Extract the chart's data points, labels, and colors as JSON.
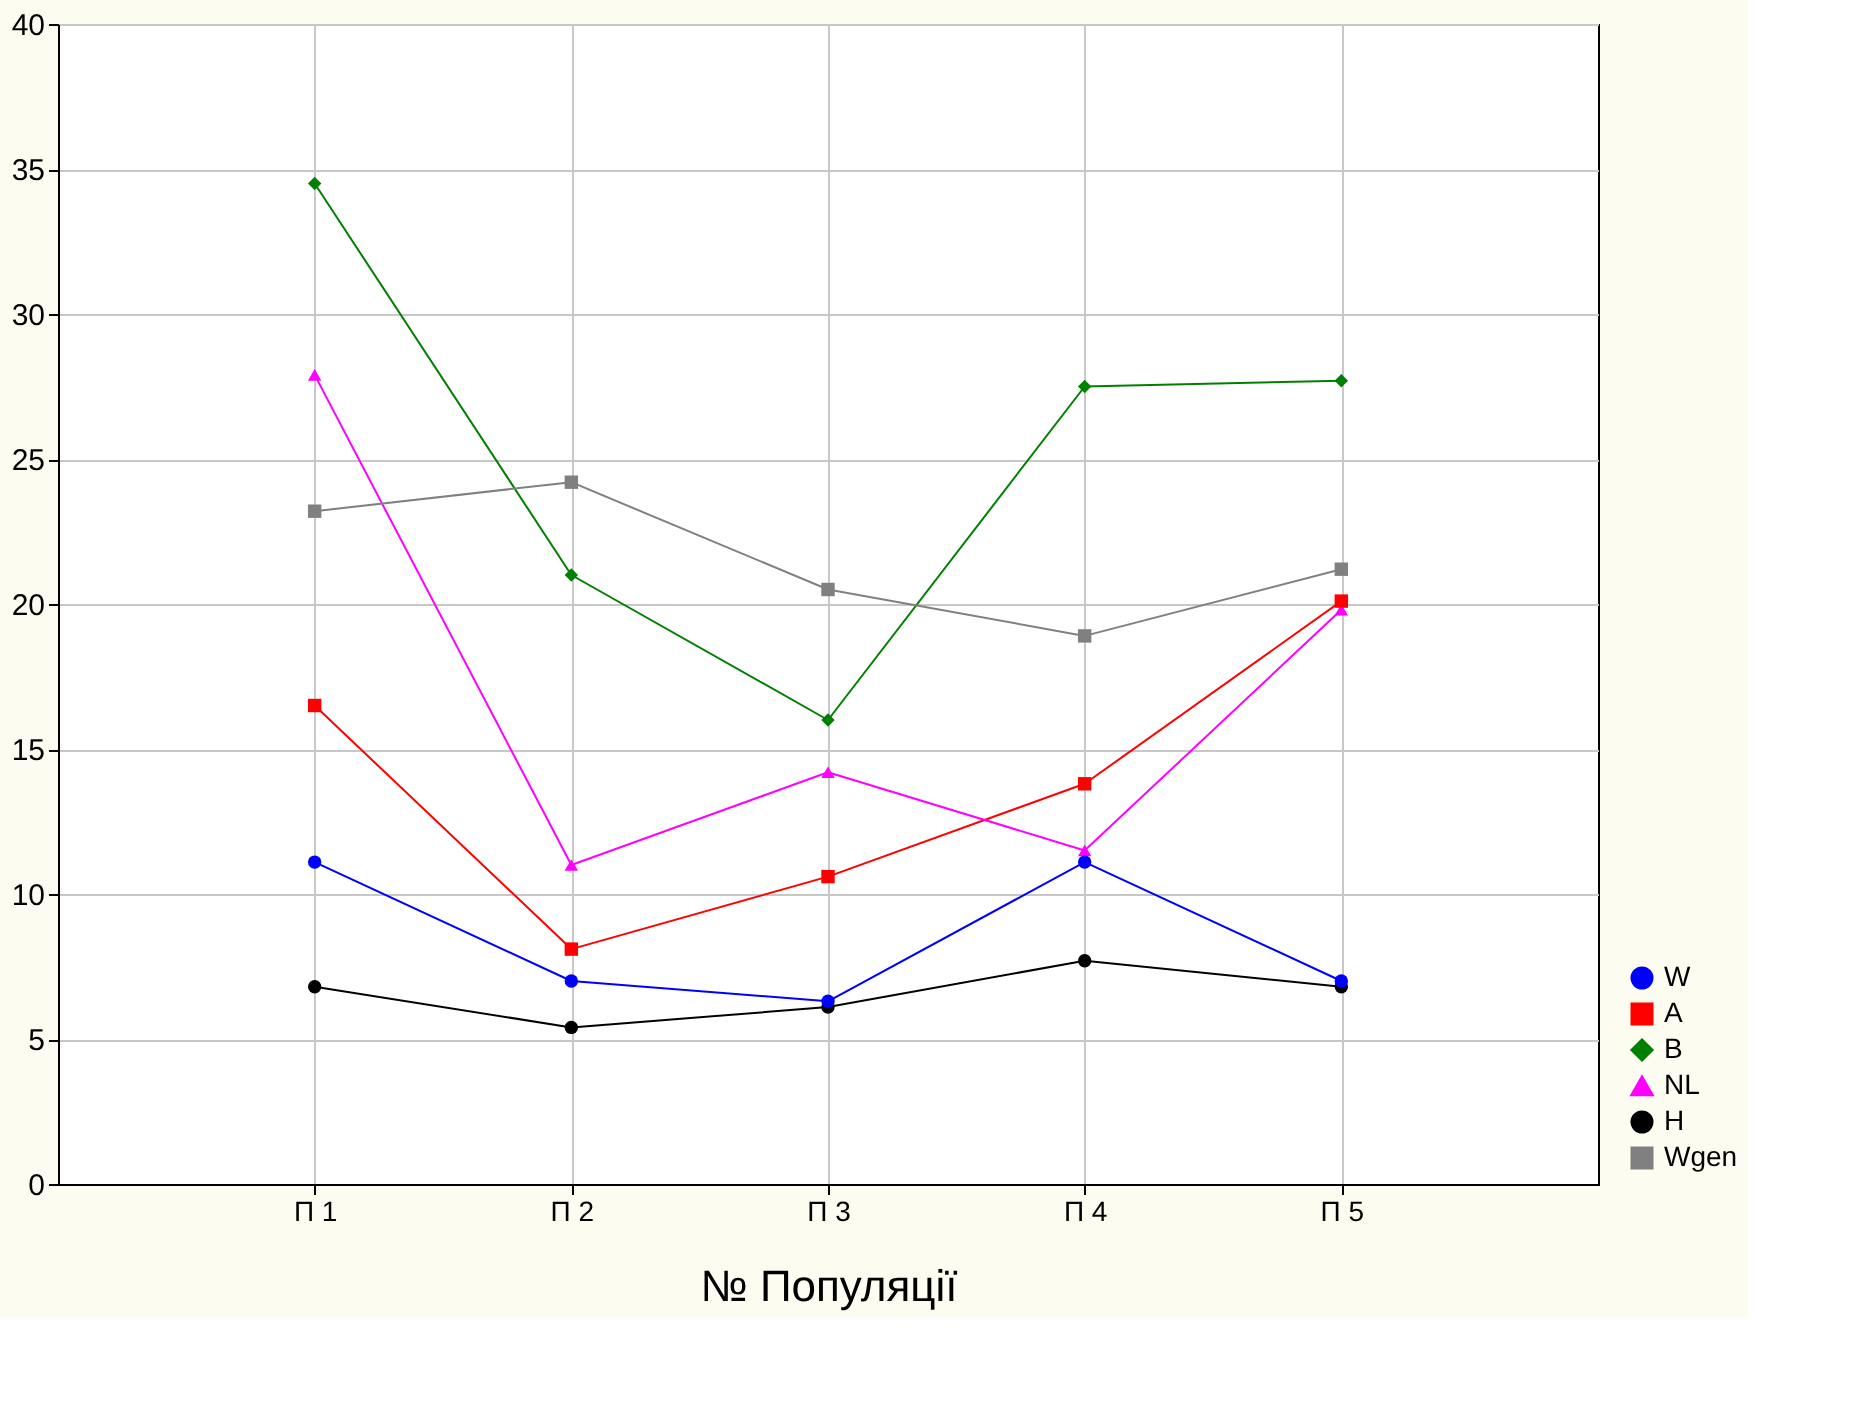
{
  "chart_data": {
    "type": "line",
    "xlabel": "№ Популяції",
    "categories": [
      "П 1",
      "П 2",
      "П 3",
      "П 4",
      "П 5"
    ],
    "ylim": [
      0,
      40
    ],
    "yticks": [
      0,
      5,
      10,
      15,
      20,
      25,
      30,
      35,
      40
    ],
    "grid": true,
    "legend": "bottom right",
    "series": [
      {
        "name": "W",
        "color": "#0000ff",
        "marker": "circle",
        "values": [
          11.1,
          7.0,
          6.3,
          11.1,
          7.0
        ]
      },
      {
        "name": "A",
        "color": "#ff0000",
        "marker": "square",
        "values": [
          16.5,
          8.1,
          10.6,
          13.8,
          20.1
        ]
      },
      {
        "name": "B",
        "color": "#008000",
        "marker": "diamond",
        "values": [
          34.5,
          21.0,
          16.0,
          27.5,
          27.7
        ]
      },
      {
        "name": "NL",
        "color": "#ff00ff",
        "marker": "triangle",
        "values": [
          27.9,
          11.0,
          14.2,
          11.5,
          19.8
        ]
      },
      {
        "name": "H",
        "color": "#000000",
        "marker": "circle",
        "values": [
          6.8,
          5.4,
          6.1,
          7.7,
          6.8
        ]
      },
      {
        "name": "Wgen",
        "color": "#808080",
        "marker": "square",
        "values": [
          23.2,
          24.2,
          20.5,
          18.9,
          21.2
        ]
      }
    ]
  }
}
